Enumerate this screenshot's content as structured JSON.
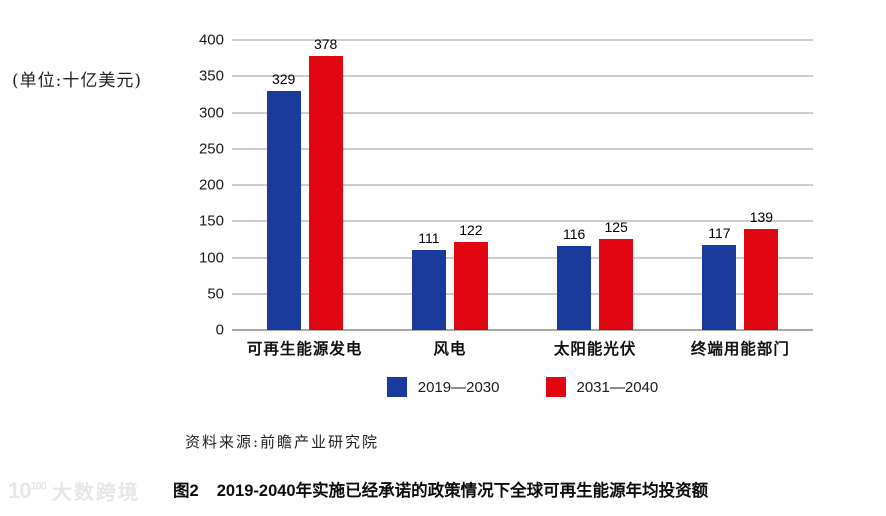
{
  "chart": {
    "unit_label": "(单位:十亿美元)"
  },
  "chart_data": {
    "type": "bar",
    "title": "图2 2019-2040年实施已经承诺的政策情况下全球可再生能源年均投资额",
    "categories": [
      "可再生能源发电",
      "风电",
      "太阳能光伏",
      "终端用能部门"
    ],
    "series": [
      {
        "name": "2019—2030",
        "color": "#1A3A9C",
        "values": [
          329,
          111,
          116,
          117
        ]
      },
      {
        "name": "2031—2040",
        "color": "#E20613",
        "values": [
          378,
          122,
          125,
          139
        ]
      }
    ],
    "xlabel": "",
    "ylabel": "(单位:十亿美元)",
    "ylim": [
      0,
      400
    ],
    "ytick_step": 50,
    "grid": true,
    "legend_position": "bottom",
    "data_labels": true
  },
  "source_note": "资料来源:前瞻产业研究院",
  "caption": {
    "prefix": "图2",
    "text": "2019-2040年实施已经承诺的政策情况下全球可再生能源年均投资额"
  },
  "watermark": {
    "logo_base": "10",
    "logo_sup": "100",
    "text": "大数跨境"
  },
  "colors": {
    "series_blue": "#1A3A9C",
    "series_red": "#E20613",
    "gridline": "#cccccc",
    "axis_line": "#a8a8a8"
  }
}
